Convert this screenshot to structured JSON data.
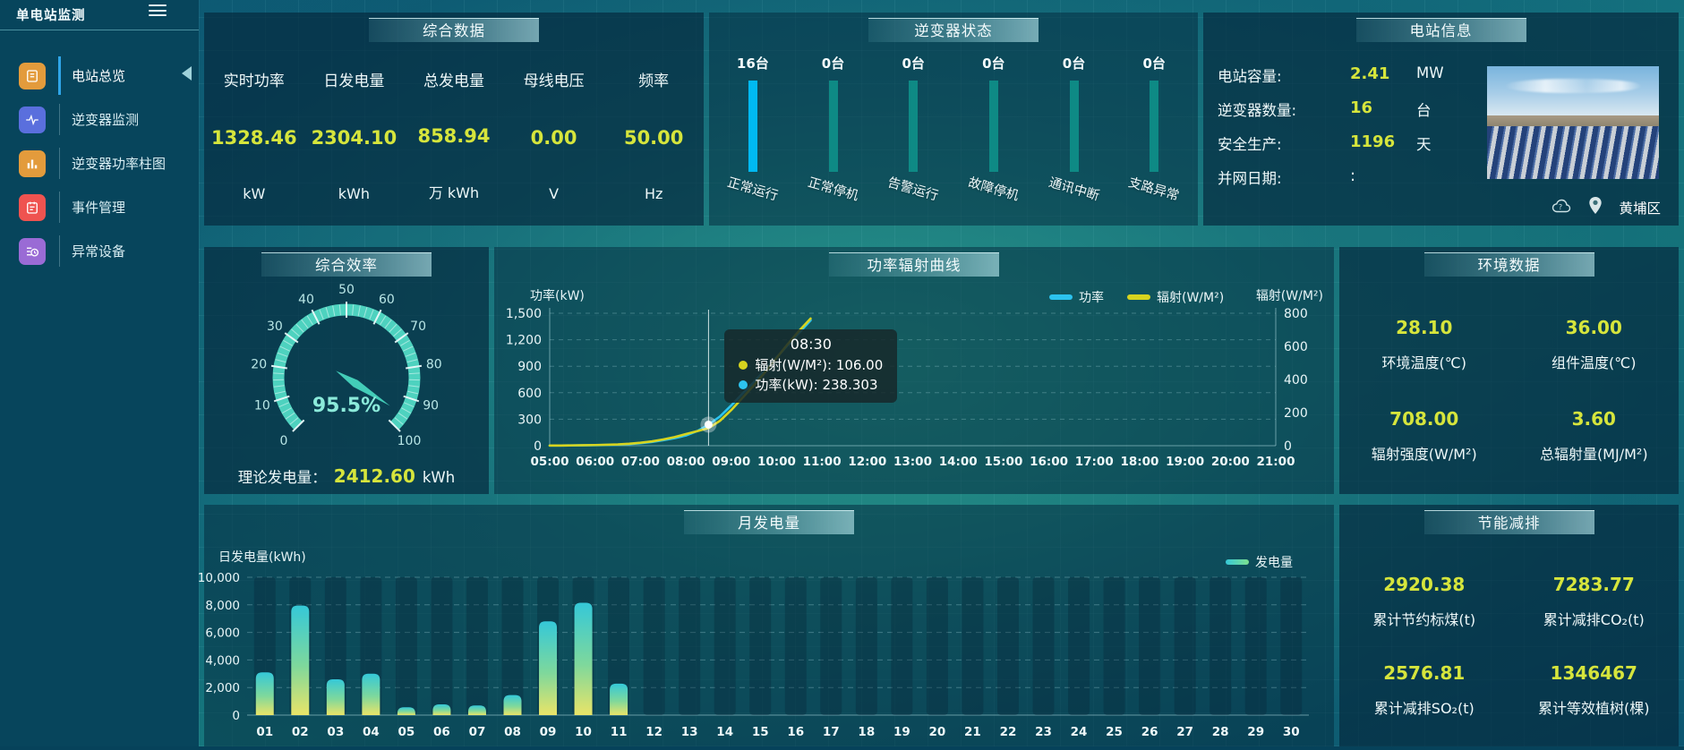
{
  "colors": {
    "accent_yellow": "#d6e53c",
    "bright_blue": "#00b9f2",
    "teal_bar": "#0e8a85",
    "gauge_teal": "#4ed2bf",
    "line_power": "#2cc3ef",
    "line_radiation": "#d7d41f"
  },
  "sidebar": {
    "title": "单电站监测",
    "items": [
      {
        "label": "电站总览",
        "icon": "document-icon",
        "color": "#e39b3c",
        "active": true
      },
      {
        "label": "逆变器监测",
        "icon": "waveform-icon",
        "color": "#5a6fdd",
        "active": false
      },
      {
        "label": "逆变器功率柱图",
        "icon": "bar-chart-icon",
        "color": "#e39b3c",
        "active": false
      },
      {
        "label": "事件管理",
        "icon": "notebook-icon",
        "color": "#ef5350",
        "active": false
      },
      {
        "label": "异常设备",
        "icon": "device-clock-icon",
        "color": "#9a6bd5",
        "active": false
      }
    ]
  },
  "summary": {
    "title": "综合数据",
    "metrics": [
      {
        "label": "实时功率",
        "value": "1328.46",
        "unit": "kW"
      },
      {
        "label": "日发电量",
        "value": "2304.10",
        "unit": "kWh"
      },
      {
        "label": "总发电量",
        "value": "858.94",
        "unit": "万 kWh"
      },
      {
        "label": "母线电压",
        "value": "0.00",
        "unit": "V"
      },
      {
        "label": "频率",
        "value": "50.00",
        "unit": "Hz"
      }
    ]
  },
  "inverter": {
    "title": "逆变器状态"
  },
  "station": {
    "title": "电站信息",
    "rows": [
      {
        "label": "电站容量:",
        "value": "2.41",
        "unit": "MW"
      },
      {
        "label": "逆变器数量:",
        "value": "16",
        "unit": "台"
      },
      {
        "label": "安全生产:",
        "value": "1196",
        "unit": "天"
      },
      {
        "label": "并网日期:",
        "value": ":",
        "unit": "",
        "plain": true
      }
    ],
    "location": "黄埔区"
  },
  "efficiency": {
    "title": "综合效率",
    "footer_label": "理论发电量：",
    "footer_value": "2412.60",
    "footer_unit": "kWh"
  },
  "curve": {
    "title": "功率辐射曲线"
  },
  "env": {
    "title": "环境数据",
    "cells": [
      {
        "value": "28.10",
        "label": "环境温度(℃)"
      },
      {
        "value": "36.00",
        "label": "组件温度(℃)"
      },
      {
        "value": "708.00",
        "label": "辐射强度(W/M²)"
      },
      {
        "value": "3.60",
        "label": "总辐射量(MJ/M²)"
      }
    ]
  },
  "monthly": {
    "title": "月发电量"
  },
  "saving": {
    "title": "节能减排",
    "cells": [
      {
        "value": "2920.38",
        "label": "累计节约标煤(t)"
      },
      {
        "value": "7283.77",
        "label": "累计减排CO₂(t)"
      },
      {
        "value": "2576.81",
        "label": "累计减排SO₂(t)"
      },
      {
        "value": "1346467",
        "label": "累计等效植树(棵)"
      }
    ]
  },
  "chart_data": [
    {
      "id": "inverter_status",
      "type": "bar",
      "title": "逆变器状态",
      "categories": [
        "正常运行",
        "正常停机",
        "告警运行",
        "故障停机",
        "通讯中断",
        "支路异常"
      ],
      "values": [
        16,
        0,
        0,
        0,
        0,
        0
      ],
      "unit": "台",
      "active_color": "#00b9f2",
      "inactive_color": "#0e8a85"
    },
    {
      "id": "overall_efficiency",
      "type": "gauge",
      "title": "综合效率",
      "value": 95.5,
      "display": "95.5%",
      "min": 0,
      "max": 100,
      "tick_step": 10
    },
    {
      "id": "power_radiation",
      "type": "line",
      "title": "功率辐射曲线",
      "ylabel_left": "功率(kW)",
      "ylabel_right": "辐射(W/M²)",
      "x_ticks": [
        "05:00",
        "06:00",
        "07:00",
        "08:00",
        "09:00",
        "10:00",
        "11:00",
        "12:00",
        "13:00",
        "14:00",
        "15:00",
        "16:00",
        "17:00",
        "18:00",
        "19:00",
        "20:00",
        "21:00"
      ],
      "y_left_ticks": [
        0,
        300,
        600,
        900,
        1200,
        1500
      ],
      "y_right_ticks": [
        0,
        200,
        400,
        600,
        800
      ],
      "y_left_max": 1500,
      "y_right_max": 800,
      "grid": true,
      "legend_position": "top-center",
      "series": [
        {
          "name": "功率",
          "axis": "left",
          "color": "#2cc3ef",
          "points": [
            [
              300,
              2
            ],
            [
              315,
              2
            ],
            [
              330,
              3
            ],
            [
              345,
              4
            ],
            [
              360,
              6
            ],
            [
              375,
              8
            ],
            [
              390,
              12
            ],
            [
              405,
              18
            ],
            [
              420,
              28
            ],
            [
              435,
              42
            ],
            [
              450,
              62
            ],
            [
              465,
              85
            ],
            [
              480,
              115
            ],
            [
              495,
              165
            ],
            [
              510,
              238.3
            ],
            [
              525,
              330
            ],
            [
              540,
              455
            ],
            [
              555,
              590
            ],
            [
              570,
              720
            ],
            [
              585,
              860
            ],
            [
              600,
              1000
            ],
            [
              615,
              1140
            ],
            [
              630,
              1280
            ],
            [
              645,
              1420
            ]
          ]
        },
        {
          "name": "辐射(W/M²)",
          "axis": "right",
          "color": "#d7d41f",
          "points": [
            [
              300,
              1
            ],
            [
              315,
              1
            ],
            [
              330,
              2
            ],
            [
              345,
              3
            ],
            [
              360,
              4
            ],
            [
              375,
              6
            ],
            [
              390,
              8
            ],
            [
              405,
              12
            ],
            [
              420,
              18
            ],
            [
              435,
              26
            ],
            [
              450,
              38
            ],
            [
              465,
              52
            ],
            [
              480,
              70
            ],
            [
              495,
              88
            ],
            [
              510,
              106
            ],
            [
              525,
              150
            ],
            [
              540,
              215
            ],
            [
              555,
              290
            ],
            [
              570,
              365
            ],
            [
              585,
              445
            ],
            [
              600,
              530
            ],
            [
              615,
              615
            ],
            [
              630,
              695
            ],
            [
              645,
              768
            ]
          ]
        }
      ],
      "tooltip": {
        "x_minutes": 510,
        "time": "08:30",
        "entries": [
          {
            "label": "辐射(W/M²)",
            "value": "106.00",
            "color": "#d7d41f"
          },
          {
            "label": "功率(kW)",
            "value": "238.303",
            "color": "#2cc3ef"
          }
        ]
      }
    },
    {
      "id": "daily_generation",
      "type": "bar",
      "title": "月发电量",
      "ylabel": "日发电量(kWh)",
      "legend": "发电量",
      "legend_position": "top-right",
      "categories": [
        "01",
        "02",
        "03",
        "04",
        "05",
        "06",
        "07",
        "08",
        "09",
        "10",
        "11",
        "12",
        "13",
        "14",
        "15",
        "16",
        "17",
        "18",
        "19",
        "20",
        "21",
        "22",
        "23",
        "24",
        "25",
        "26",
        "27",
        "28",
        "29",
        "30"
      ],
      "values": [
        3100,
        7950,
        2600,
        3000,
        570,
        780,
        700,
        1450,
        6800,
        8150,
        2280,
        0,
        0,
        0,
        0,
        0,
        0,
        0,
        0,
        0,
        0,
        0,
        0,
        0,
        0,
        0,
        0,
        0,
        0,
        0
      ],
      "y_ticks": [
        0,
        2000,
        4000,
        6000,
        8000,
        10000
      ],
      "ylim": [
        0,
        10000
      ],
      "grid": true
    }
  ]
}
